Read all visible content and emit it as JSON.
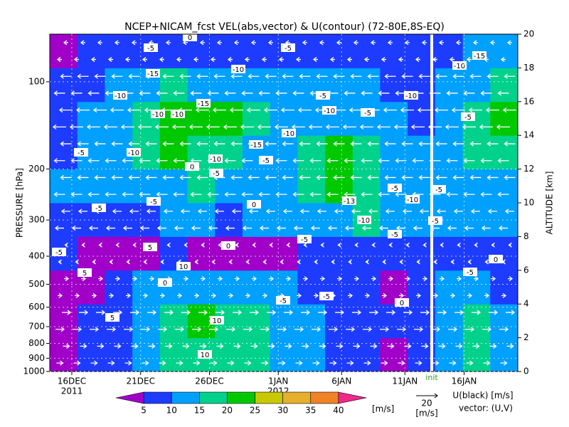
{
  "chart_data": {
    "type": "cross-section",
    "title": "NCEP+NICAM_fcst VEL(abs,vector) & U(contour)   (72-80E,8S-EQ)",
    "ylabel": "PRESSURE [hPa]",
    "y2label": "ALTITUDE [km]",
    "xlim": [
      0,
      34
    ],
    "xticks": [
      {
        "value": 1.6,
        "label": "16DEC"
      },
      {
        "value": 6.6,
        "label": "21DEC"
      },
      {
        "value": 11.6,
        "label": "26DEC"
      },
      {
        "value": 16.6,
        "label": "1JAN"
      },
      {
        "value": 21.2,
        "label": "6JAN"
      },
      {
        "value": 25.8,
        "label": "11JAN"
      },
      {
        "value": 30.1,
        "label": "16JAN"
      }
    ],
    "year_labels": [
      "2011",
      "2012"
    ],
    "ylim": [
      1000,
      68.5
    ],
    "ylog": true,
    "yticks": [
      100,
      200,
      300,
      400,
      500,
      600,
      700,
      800,
      900,
      1000
    ],
    "y2lim": [
      0,
      20
    ],
    "y2ticks": [
      0,
      2,
      4,
      6,
      8,
      10,
      12,
      14,
      16,
      18,
      20
    ],
    "x_bins": [
      0,
      2,
      4,
      6,
      8,
      10,
      12,
      14,
      16,
      18,
      20,
      22,
      24,
      26,
      28,
      30,
      32,
      34
    ],
    "z_bins": [
      0,
      2,
      4,
      6,
      8,
      10,
      12,
      14,
      16,
      18,
      20
    ],
    "field": [
      [
        4,
        6,
        8,
        12,
        17,
        19,
        18,
        16,
        14,
        10,
        7,
        5,
        4,
        6,
        12,
        15,
        10
      ],
      [
        4,
        5,
        9,
        14,
        18,
        20,
        18,
        16,
        14,
        12,
        8,
        6,
        5,
        7,
        14,
        16,
        12
      ],
      [
        3,
        4,
        6,
        10,
        12,
        13,
        12,
        14,
        11,
        8,
        6,
        5,
        4,
        5,
        10,
        12,
        9
      ],
      [
        6,
        4,
        3,
        4,
        5,
        4,
        3,
        4,
        4,
        5,
        6,
        8,
        6,
        7,
        7,
        8,
        9
      ],
      [
        8,
        9,
        8,
        9,
        10,
        11,
        9,
        10,
        11,
        12,
        14,
        15,
        13,
        11,
        12,
        13,
        12
      ],
      [
        10,
        11,
        12,
        13,
        14,
        15,
        14,
        13,
        14,
        18,
        22,
        18,
        14,
        12,
        12,
        14,
        14
      ],
      [
        9,
        12,
        14,
        17,
        20,
        19,
        16,
        13,
        14,
        17,
        20,
        16,
        14,
        12,
        13,
        15,
        17
      ],
      [
        8,
        10,
        13,
        18,
        22,
        23,
        21,
        17,
        12,
        12,
        14,
        12,
        10,
        9,
        12,
        16,
        20
      ],
      [
        7,
        8,
        10,
        13,
        15,
        14,
        13,
        12,
        11,
        10,
        11,
        10,
        9,
        8,
        10,
        14,
        18
      ],
      [
        4,
        6,
        5,
        7,
        8,
        6,
        8,
        9,
        7,
        6,
        8,
        7,
        6,
        5,
        8,
        10,
        12
      ]
    ],
    "vector_u": [
      6,
      8,
      4,
      -2,
      -8,
      -10,
      -10,
      -12,
      -10,
      -4
    ],
    "vector_ref": 20,
    "vector_ref_unit": "[m/s]",
    "legend_u": "U(black) [m/s]",
    "legend_vector": "vector: (U,V)",
    "init_x": 27.75,
    "init_label": "init",
    "contour_labels": [
      -5,
      -5,
      0,
      -15,
      -10,
      -10,
      -15,
      -10,
      -10,
      -5,
      -10,
      -5,
      -10,
      -10,
      -15,
      -10,
      -10,
      -5,
      -5,
      -5,
      0,
      -13,
      -5,
      -10,
      -5,
      -5,
      0,
      -10,
      -5,
      -5,
      -5,
      0,
      5,
      0,
      5,
      10,
      0,
      -5,
      -5,
      -5,
      -5,
      -5,
      0,
      5,
      10,
      10,
      -5,
      -15,
      -10
    ],
    "colorbar": {
      "levels": [
        5,
        10,
        15,
        20,
        25,
        30,
        35,
        40
      ],
      "colors": [
        "#a000c8",
        "#1e3cff",
        "#00a0ff",
        "#00d28c",
        "#00c800",
        "#c8c800",
        "#e6af2d",
        "#f08228",
        "#f0288c"
      ],
      "unit": "[m/s]"
    }
  }
}
